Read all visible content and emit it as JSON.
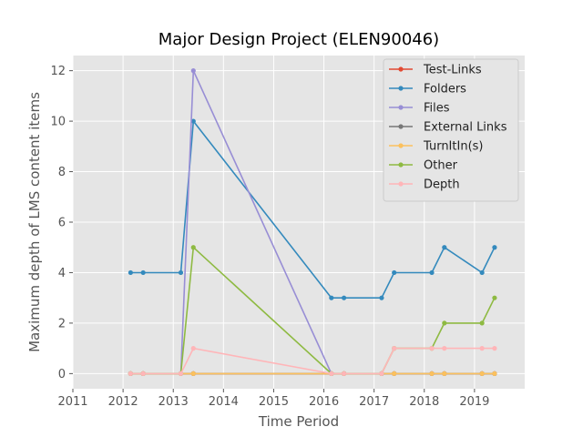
{
  "chart_data": {
    "type": "line",
    "title": "Major Design Project (ELEN90046)",
    "xlabel": "Time Period",
    "ylabel": "Maximum depth of LMS content items",
    "xlim": [
      2011,
      2020
    ],
    "ylim": [
      -0.6,
      12.6
    ],
    "x_ticks": [
      "2011",
      "2012",
      "2013",
      "2014",
      "2015",
      "2016",
      "2017",
      "2018",
      "2019"
    ],
    "y_ticks": [
      "0",
      "2",
      "4",
      "6",
      "8",
      "10",
      "12"
    ],
    "grid": true,
    "legend_position": "top-right",
    "x": [
      2012.15,
      2012.4,
      2013.15,
      2013.4,
      2016.15,
      2016.4,
      2017.15,
      2017.4,
      2018.15,
      2018.4,
      2019.15,
      2019.4
    ],
    "series": [
      {
        "name": "Test-Links",
        "color": "#e24a33",
        "values": [
          0,
          0,
          0,
          0,
          0,
          0,
          0,
          0,
          0,
          0,
          0,
          0
        ]
      },
      {
        "name": "Folders",
        "color": "#348abd",
        "values": [
          4,
          4,
          4,
          10,
          3,
          3,
          3,
          4,
          4,
          5,
          4,
          5
        ]
      },
      {
        "name": "Files",
        "color": "#988ed5",
        "values": [
          0,
          0,
          0,
          12,
          0,
          0,
          0,
          0,
          0,
          0,
          0,
          0
        ]
      },
      {
        "name": "External Links",
        "color": "#777777",
        "values": [
          0,
          0,
          0,
          0,
          0,
          0,
          0,
          0,
          0,
          0,
          0,
          0
        ]
      },
      {
        "name": "TurnItIn(s)",
        "color": "#fbc15e",
        "values": [
          0,
          0,
          0,
          0,
          0,
          0,
          0,
          0,
          0,
          0,
          0,
          0
        ]
      },
      {
        "name": "Other",
        "color": "#8eba42",
        "values": [
          0,
          0,
          0,
          5,
          0,
          0,
          0,
          1,
          1,
          2,
          2,
          3
        ]
      },
      {
        "name": "Depth",
        "color": "#ffb5b8",
        "values": [
          0,
          0,
          0,
          1,
          0,
          0,
          0,
          1,
          1,
          1,
          1,
          1
        ]
      }
    ]
  }
}
